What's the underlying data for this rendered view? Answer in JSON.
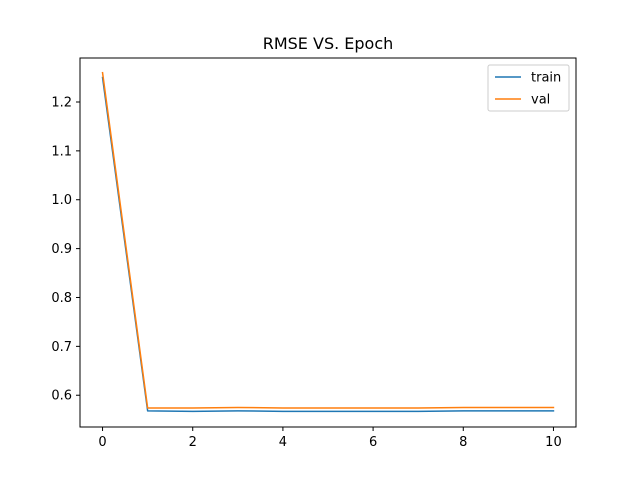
{
  "chart_data": {
    "type": "line",
    "title": "RMSE VS. Epoch",
    "xlabel": "",
    "ylabel": "",
    "x": [
      0,
      1,
      2,
      3,
      4,
      5,
      6,
      7,
      8,
      9,
      10
    ],
    "xlim": [
      -0.5,
      10.5
    ],
    "ylim": [
      0.535,
      1.29
    ],
    "xticks": [
      0,
      2,
      4,
      6,
      8,
      10
    ],
    "yticks": [
      0.6,
      0.7,
      0.8,
      0.9,
      1.0,
      1.1,
      1.2
    ],
    "ytick_labels": [
      "0.6",
      "0.7",
      "0.8",
      "0.9",
      "1.0",
      "1.1",
      "1.2"
    ],
    "grid": false,
    "legend_position": "top-right",
    "series": [
      {
        "name": "train",
        "color": "#1f77b4",
        "values": [
          1.25,
          0.568,
          0.567,
          0.568,
          0.567,
          0.567,
          0.567,
          0.567,
          0.568,
          0.568,
          0.568
        ]
      },
      {
        "name": "val",
        "color": "#ff7f0e",
        "values": [
          1.26,
          0.574,
          0.574,
          0.575,
          0.574,
          0.574,
          0.574,
          0.574,
          0.575,
          0.575,
          0.575
        ]
      }
    ]
  }
}
